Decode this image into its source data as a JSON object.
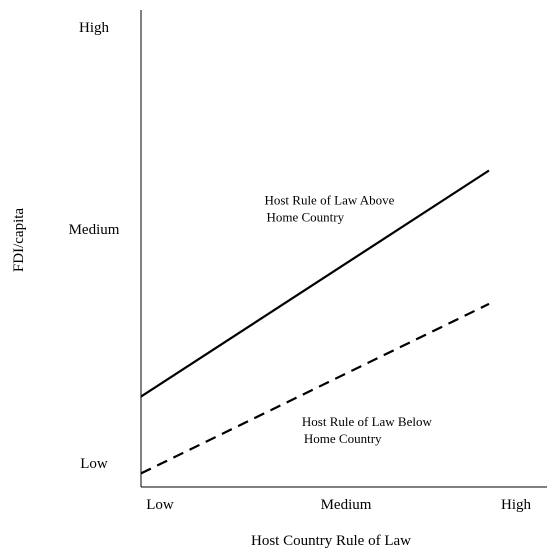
{
  "chart_data": {
    "type": "line",
    "xlabel": "Host Country Rule of Law",
    "ylabel": "FDI/capita",
    "x_ticks": [
      "Low",
      "Medium",
      "High"
    ],
    "y_ticks": [
      "Low",
      "Medium",
      "High"
    ],
    "xlim": [
      0,
      2.17
    ],
    "ylim": [
      0,
      2.11
    ],
    "grid": false,
    "series": [
      {
        "style": "solid",
        "color": "#000000",
        "x": [
          0,
          1.86
        ],
        "y": [
          0.4,
          1.4
        ]
      },
      {
        "style": "dashed",
        "color": "#000000",
        "x": [
          0,
          1.86
        ],
        "y": [
          0.06,
          0.81
        ]
      }
    ],
    "annotations": [
      {
        "lines": [
          "Host Rule of Law Above",
          "Home Country"
        ],
        "x": 0.66,
        "y": 1.25
      },
      {
        "lines": [
          "Host Rule of Law Below",
          "Home Country"
        ],
        "x": 0.86,
        "y": 0.27
      }
    ]
  }
}
